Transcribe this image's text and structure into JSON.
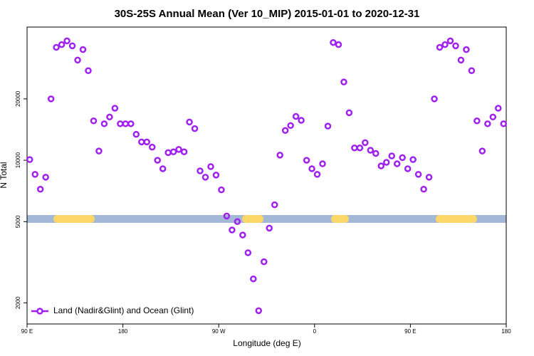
{
  "chart_data": {
    "type": "scatter",
    "title": "30S-25S Annual Mean (Ver 10_MIP)   2015-01-01 to 2020-12-31",
    "x_label": "Longitude (deg E)",
    "y_label": "N Total",
    "log_y": true,
    "xlim": [
      90,
      540
    ],
    "xticks": [
      {
        "value": 90,
        "label": "90 E"
      },
      {
        "value": 180,
        "label": "180"
      },
      {
        "value": 270,
        "label": "90 W"
      },
      {
        "value": 360,
        "label": "0"
      },
      {
        "value": 450,
        "label": "90 E"
      },
      {
        "value": 540,
        "label": "180"
      }
    ],
    "ylim": [
      1575,
      45000
    ],
    "yticks": [
      2000,
      5000,
      10000,
      20000
    ],
    "legend": "bottom-left",
    "series": [
      {
        "name": "Land (Nadir&Glint) and Ocean (Glint)",
        "color": "#a020f0",
        "x": [
          92.5,
          97.5,
          102.5,
          107.5,
          112.5,
          117.5,
          122.5,
          127.5,
          132.5,
          137.5,
          142.5,
          147.5,
          152.5,
          157.5,
          162.5,
          167.5,
          172.5,
          177.5,
          182.5,
          187.5,
          192.5,
          197.5,
          202.5,
          207.5,
          212.5,
          217.5,
          222.5,
          227.5,
          232.5,
          237.5,
          242.5,
          247.5,
          252.5,
          257.5,
          262.5,
          267.5,
          272.5,
          277.5,
          282.5,
          287.5,
          292.5,
          297.5,
          302.5,
          307.5,
          312.5,
          317.5,
          322.5,
          327.5,
          332.5,
          337.5,
          342.5,
          347.5,
          352.5,
          357.5,
          362.5,
          367.5,
          372.5,
          377.5,
          382.5,
          387.5,
          392.5,
          397.5,
          402.5,
          407.5,
          412.5,
          417.5,
          422.5,
          427.5,
          432.5,
          437.5,
          442.5,
          447.5,
          452.5,
          457.5,
          462.5,
          467.5,
          472.5,
          477.5,
          482.5,
          487.5,
          492.5,
          497.5,
          502.5,
          507.5,
          512.5,
          517.5,
          522.5,
          527.5,
          532.5,
          537.5
        ],
        "values": [
          10080,
          8530,
          7210,
          8260,
          20000,
          35800,
          36900,
          38500,
          36400,
          31000,
          34900,
          27500,
          15600,
          11100,
          15100,
          16300,
          18000,
          15100,
          15100,
          15100,
          13400,
          12300,
          12300,
          11600,
          10000,
          9090,
          10900,
          11000,
          11300,
          11000,
          15400,
          14300,
          8870,
          8260,
          9310,
          8460,
          7160,
          5330,
          4550,
          5000,
          4300,
          3520,
          2620,
          1830,
          3180,
          4650,
          6050,
          10600,
          14000,
          14800,
          16400,
          15700,
          10000,
          9090,
          8530,
          9610,
          14700,
          37800,
          36900,
          24200,
          17100,
          11500,
          11500,
          12200,
          11200,
          10800,
          9380,
          9770,
          10500,
          9610,
          10300,
          9090,
          10080,
          8530,
          7210,
          8260,
          20000,
          35800,
          36900,
          38500,
          36400,
          31000,
          34900,
          27500,
          15600,
          11100,
          15100,
          16300,
          18000,
          15100
        ]
      }
    ]
  }
}
